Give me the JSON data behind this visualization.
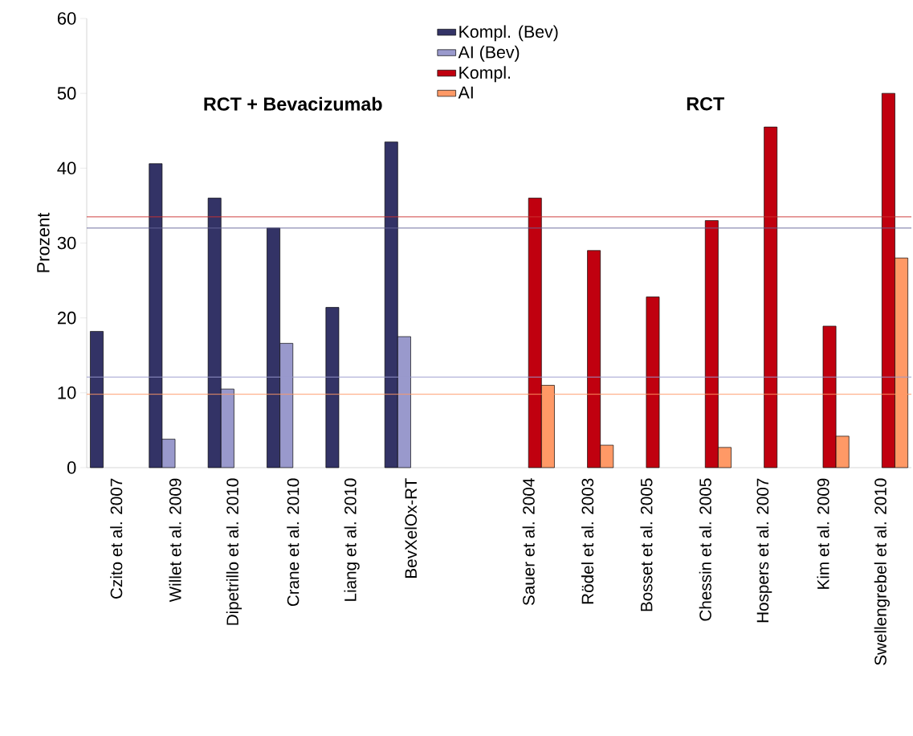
{
  "chart_data": {
    "type": "bar",
    "ylabel": "Prozent",
    "categories": [
      "Czito et al. 2007",
      "Willet et al. 2009",
      "Dipetrillo et al. 2010",
      "Crane et al. 2010",
      "Liang et al. 2010",
      "BevXelOx-RT",
      null,
      "Sauer et al. 2004",
      "Rödel et al. 2003",
      "Bosset et al. 2005",
      "Chessin et al. 2005",
      "Hospers et al. 2007",
      "Kim et al. 2009",
      "Swellengrebel et al. 2010"
    ],
    "series": [
      {
        "name": "Kompl. (Bev)",
        "color": "#333366",
        "values": [
          18.2,
          40.6,
          36,
          32,
          21.4,
          43.5,
          null,
          null,
          null,
          null,
          null,
          null,
          null,
          null
        ]
      },
      {
        "name": "AI (Bev)",
        "color": "#9999cc",
        "values": [
          null,
          3.8,
          10.5,
          16.6,
          null,
          17.5,
          null,
          null,
          null,
          null,
          null,
          null,
          null,
          null
        ]
      },
      {
        "name": "Kompl.",
        "color": "#c0000f",
        "values": [
          null,
          null,
          null,
          null,
          null,
          null,
          null,
          36,
          29,
          22.8,
          33,
          45.5,
          18.9,
          50
        ]
      },
      {
        "name": "AI",
        "color": "#ff9966",
        "values": [
          null,
          null,
          null,
          null,
          null,
          null,
          null,
          11,
          3,
          null,
          2.7,
          null,
          4.2,
          28
        ]
      }
    ],
    "ylim": [
      0,
      60
    ],
    "yticks": [
      0,
      10,
      20,
      30,
      40,
      50,
      60
    ],
    "ref_lines": [
      {
        "axis": "y",
        "value": 33.5,
        "color": "#cc3333"
      },
      {
        "axis": "y",
        "value": 32,
        "color": "#666699"
      },
      {
        "axis": "y",
        "value": 12.1,
        "color": "#9999cc"
      },
      {
        "axis": "y",
        "value": 9.8,
        "color": "#ff9966"
      }
    ],
    "annotations": [
      "RCT + Bevacizumab",
      "RCT"
    ],
    "legend": "top",
    "grid": false
  }
}
